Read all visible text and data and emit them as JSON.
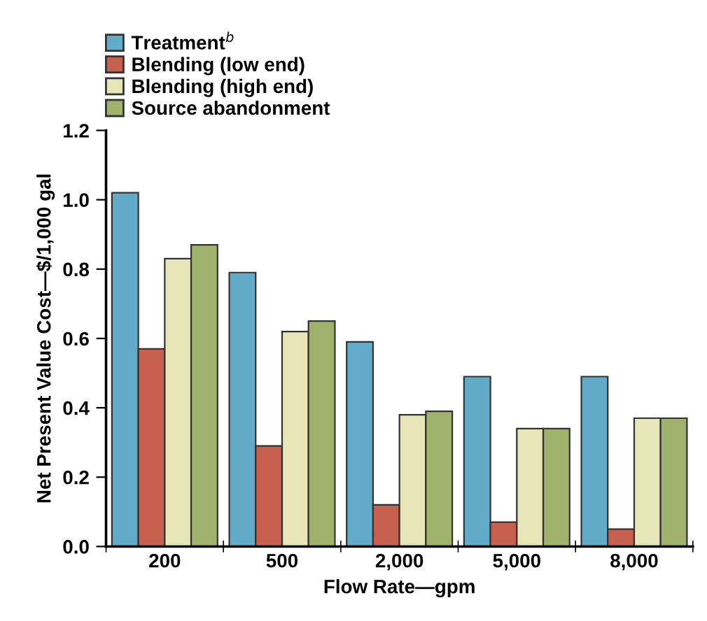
{
  "chart_data": {
    "type": "bar",
    "xlabel": "Flow Rate—gpm",
    "ylabel": "Net Present Value Cost—$/1,000 gal",
    "categories": [
      "200",
      "500",
      "2,000",
      "5,000",
      "8,000"
    ],
    "series": [
      {
        "name": "Treatment$^{b}$",
        "color": "#62acc9",
        "values": [
          1.02,
          0.79,
          0.59,
          0.49,
          0.49
        ]
      },
      {
        "name": "Blending (low end)",
        "color": "#c8604f",
        "values": [
          0.57,
          0.29,
          0.12,
          0.07,
          0.05
        ]
      },
      {
        "name": "Blending (high end)",
        "color": "#e8e6b8",
        "values": [
          0.83,
          0.62,
          0.38,
          0.34,
          0.37
        ]
      },
      {
        "name": "Source abandonment",
        "color": "#a0b36c",
        "values": [
          0.87,
          0.65,
          0.39,
          0.34,
          0.37
        ]
      }
    ],
    "ylim": [
      0,
      1.2
    ],
    "yticks": [
      {
        "value": 0,
        "label": "0.0"
      },
      0.2,
      0.4,
      0.6,
      0.8,
      {
        "value": 1.0,
        "label": "1.0"
      },
      1.2
    ],
    "grid": false,
    "legend": "top left"
  }
}
